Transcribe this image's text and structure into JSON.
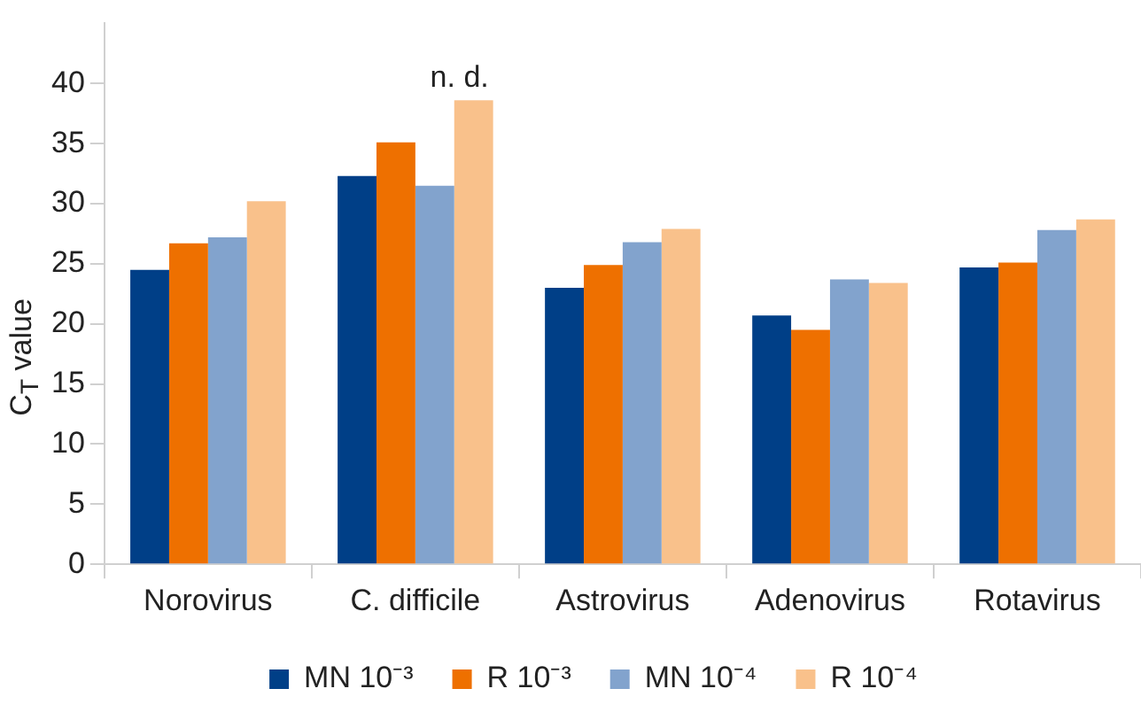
{
  "chart_data": {
    "type": "bar",
    "ylabel": "C$_{T}$ value",
    "categories": [
      "Norovirus",
      "C. difficile",
      "Astrovirus",
      "Adenovirus",
      "Rotavirus"
    ],
    "series": [
      {
        "name": "MN 10⁻³",
        "color": "#003f87",
        "values": [
          24.5,
          32.3,
          23.0,
          20.7,
          24.7
        ]
      },
      {
        "name": "R 10⁻³",
        "color": "#ee7000",
        "values": [
          26.7,
          35.1,
          24.9,
          19.5,
          25.1
        ]
      },
      {
        "name": "MN 10⁻⁴",
        "color": "#82a3cd",
        "values": [
          27.2,
          31.5,
          26.8,
          23.7,
          27.8
        ]
      },
      {
        "name": "R 10⁻⁴",
        "color": "#f9c18b",
        "values": [
          30.2,
          38.6,
          27.9,
          23.4,
          28.7
        ]
      }
    ],
    "ylim": [
      0,
      45
    ],
    "yticks": [
      0,
      5,
      10,
      15,
      20,
      25,
      30,
      35,
      40
    ],
    "annotations": [
      "n. d."
    ],
    "grid": false,
    "legend": "bottom"
  }
}
